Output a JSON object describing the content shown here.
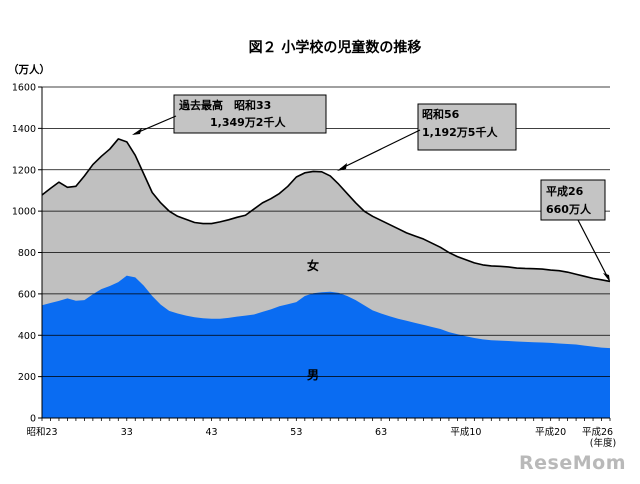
{
  "chart_data": {
    "type": "area",
    "title": "図２ 小学校の児童数の推移",
    "ylabel": "（万人）",
    "x_unit": "(年度)",
    "ylim": [
      0,
      1600
    ],
    "yticks": [
      0,
      200,
      400,
      600,
      800,
      1000,
      1200,
      1400,
      1600
    ],
    "grid": true,
    "x_tick_labels": [
      "昭和23",
      "33",
      "43",
      "53",
      "63",
      "平成10",
      "平成20",
      "平成26"
    ],
    "colors": {
      "boys": "#0a6cf2",
      "girls": "#c0c0c0",
      "gridline": "#000000"
    },
    "series": [
      {
        "name": "女",
        "values": [
          1078,
          1110,
          1140,
          1115,
          1120,
          1170,
          1225,
          1265,
          1300,
          1349,
          1335,
          1270,
          1180,
          1090,
          1040,
          1000,
          975,
          960,
          945,
          940,
          940,
          948,
          958,
          970,
          980,
          1010,
          1040,
          1060,
          1085,
          1120,
          1165,
          1185,
          1192,
          1190,
          1170,
          1130,
          1085,
          1040,
          1000,
          975,
          955,
          935,
          915,
          895,
          880,
          865,
          845,
          825,
          800,
          780,
          765,
          750,
          740,
          735,
          733,
          730,
          725,
          723,
          722,
          720,
          715,
          712,
          705,
          695,
          685,
          675,
          668,
          660
        ]
      },
      {
        "name": "男",
        "values": [
          545,
          556,
          566,
          578,
          567,
          570,
          598,
          623,
          638,
          657,
          688,
          680,
          640,
          590,
          548,
          518,
          505,
          495,
          487,
          482,
          480,
          480,
          484,
          490,
          495,
          500,
          513,
          525,
          540,
          550,
          560,
          590,
          603,
          608,
          610,
          605,
          590,
          570,
          545,
          520,
          505,
          492,
          480,
          470,
          460,
          450,
          440,
          430,
          415,
          405,
          395,
          387,
          380,
          376,
          374,
          372,
          370,
          368,
          366,
          365,
          363,
          360,
          358,
          355,
          350,
          345,
          340,
          338
        ]
      }
    ],
    "annotations": [
      {
        "line1": "過去最高　昭和33",
        "line2": "1,349万2千人"
      },
      {
        "line1": "昭和56",
        "line2": "1,192万5千人"
      },
      {
        "line1": "平成26",
        "line2": "660万人"
      }
    ]
  },
  "watermark": "ReseMom"
}
